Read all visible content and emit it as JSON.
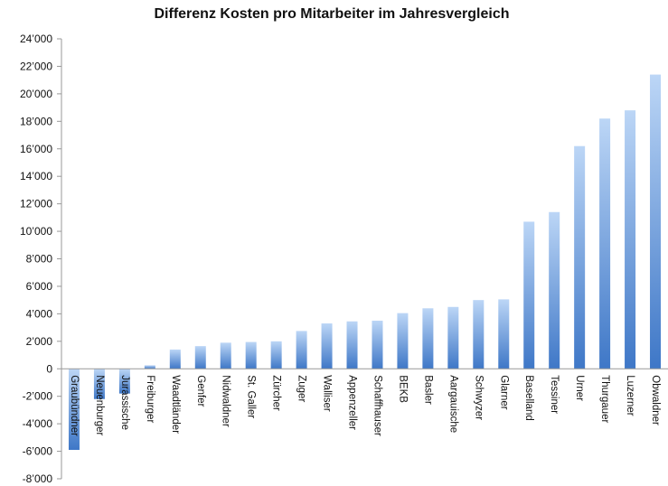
{
  "chart_data": {
    "type": "bar",
    "title": "Differenz Kosten pro Mitarbeiter im Jahresvergleich",
    "xlabel": "",
    "ylabel": "",
    "ylim": [
      -8000,
      24000
    ],
    "yticks": [
      -8000,
      -6000,
      -4000,
      -2000,
      0,
      2000,
      4000,
      6000,
      8000,
      10000,
      12000,
      14000,
      16000,
      18000,
      20000,
      22000,
      24000
    ],
    "ytick_labels": [
      "-8’000",
      "-6’000",
      "-4’000",
      "-2’000",
      "0",
      "2’000",
      "4’000",
      "6’000",
      "8’000",
      "10’000",
      "12’000",
      "14’000",
      "16’000",
      "18’000",
      "20’000",
      "22’000",
      "24’000"
    ],
    "grid": false,
    "legend": "none",
    "bar_color_top": "#bcd6f6",
    "bar_color_bottom": "#3e77c7",
    "categories": [
      "Graubündner",
      "Neuenburger",
      "Jurassische",
      "Freiburger",
      "Waadtländer",
      "Genfer",
      "Nidwaldner",
      "St. Galler",
      "Zürcher",
      "Zuger",
      "Walliser",
      "Appenzeller",
      "Schaffhauser",
      "BEKB",
      "Basler",
      "Aargauische",
      "Schwyzer",
      "Glarner",
      "Baselland",
      "Tessiner",
      "Urner",
      "Thurgauer",
      "Luzerner",
      "Obwaldner"
    ],
    "values": [
      -5900,
      -2200,
      -1800,
      250,
      1400,
      1650,
      1900,
      1950,
      2000,
      2750,
      3300,
      3450,
      3500,
      4050,
      4400,
      4500,
      5000,
      5050,
      10700,
      11400,
      16200,
      18200,
      18800,
      21400
    ]
  }
}
